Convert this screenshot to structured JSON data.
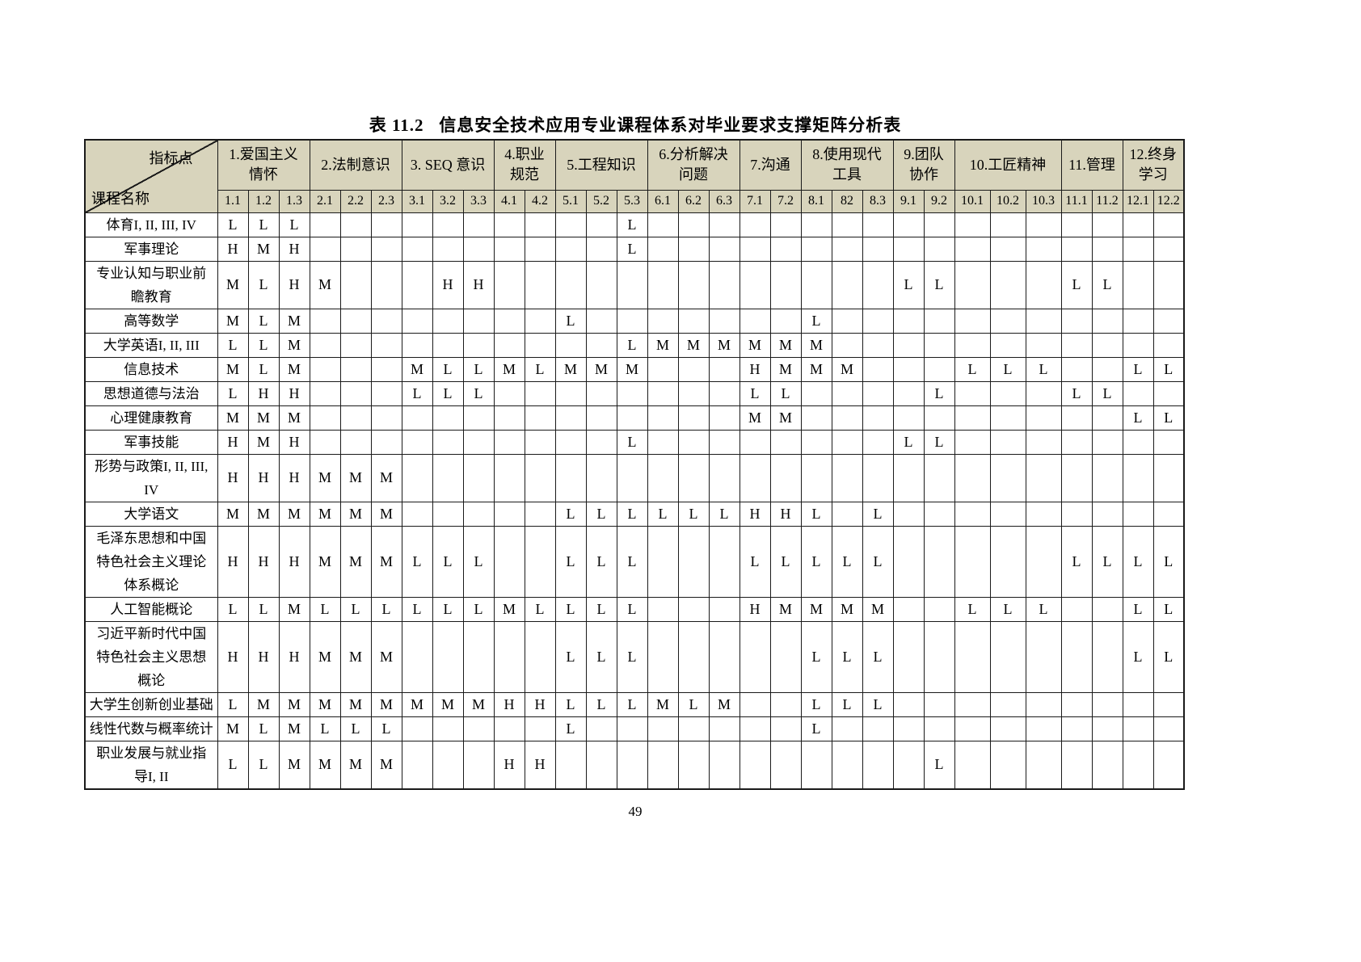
{
  "title": "表 11.2   信息安全技术应用专业课程体系对毕业要求支撑矩阵分析表",
  "page_number": "49",
  "colors": {
    "header_bg": "#d8d4bc",
    "grid_line": "#1a1a1a",
    "page_bg": "#ffffff"
  },
  "table": {
    "corner": {
      "top_label": "指标点",
      "bottom_label": "课程名称"
    },
    "groups": [
      {
        "lines": [
          "1.爱国主义",
          "情怀"
        ],
        "span": 3
      },
      {
        "lines": [
          "2.法制意识"
        ],
        "span": 3
      },
      {
        "lines": [
          "3. SEQ 意识"
        ],
        "span": 3
      },
      {
        "lines": [
          "4.职业",
          "规范"
        ],
        "span": 2
      },
      {
        "lines": [
          "5.工程知识"
        ],
        "span": 3
      },
      {
        "lines": [
          "6.分析解决",
          "问题"
        ],
        "span": 3
      },
      {
        "lines": [
          "7.沟通"
        ],
        "span": 2
      },
      {
        "lines": [
          "8.使用现代",
          "工具"
        ],
        "span": 3
      },
      {
        "lines": [
          "9.团队",
          "协作"
        ],
        "span": 2
      },
      {
        "lines": [
          "10.工匠精神"
        ],
        "span": 3
      },
      {
        "lines": [
          "11.管理"
        ],
        "span": 2
      },
      {
        "lines": [
          "12.终身",
          "学习"
        ],
        "span": 2
      }
    ],
    "subcolumns": [
      "1.1",
      "1.2",
      "1.3",
      "2.1",
      "2.2",
      "2.3",
      "3.1",
      "3.2",
      "3.3",
      "4.1",
      "4.2",
      "5.1",
      "5.2",
      "5.3",
      "6.1",
      "6.2",
      "6.3",
      "7.1",
      "7.2",
      "8.1",
      "82",
      "8.3",
      "9.1",
      "9.2",
      "10.1",
      "10.2",
      "10.3",
      "11.1",
      "11.2",
      "12.1",
      "12.2"
    ],
    "rows": [
      {
        "course": "体育I, II, III, IV",
        "values": [
          "L",
          "L",
          "L",
          "",
          "",
          "",
          "",
          "",
          "",
          "",
          "",
          "",
          "",
          "L",
          "",
          "",
          "",
          "",
          "",
          "",
          "",
          "",
          "",
          "",
          "",
          "",
          "",
          "",
          "",
          "",
          ""
        ]
      },
      {
        "course": "军事理论",
        "values": [
          "H",
          "M",
          "H",
          "",
          "",
          "",
          "",
          "",
          "",
          "",
          "",
          "",
          "",
          "L",
          "",
          "",
          "",
          "",
          "",
          "",
          "",
          "",
          "",
          "",
          "",
          "",
          "",
          "",
          "",
          "",
          ""
        ]
      },
      {
        "course": "专业认知与职业前\n瞻教育",
        "values": [
          "M",
          "L",
          "H",
          "M",
          "",
          "",
          "",
          "H",
          "H",
          "",
          "",
          "",
          "",
          "",
          "",
          "",
          "",
          "",
          "",
          "",
          "",
          "",
          "L",
          "L",
          "",
          "",
          "",
          "L",
          "L",
          "",
          ""
        ]
      },
      {
        "course": "高等数学",
        "values": [
          "M",
          "L",
          "M",
          "",
          "",
          "",
          "",
          "",
          "",
          "",
          "",
          "L",
          "",
          "",
          "",
          "",
          "",
          "",
          "",
          "L",
          "",
          "",
          "",
          "",
          "",
          "",
          "",
          "",
          "",
          "",
          ""
        ]
      },
      {
        "course": "大学英语I, II, III",
        "values": [
          "L",
          "L",
          "M",
          "",
          "",
          "",
          "",
          "",
          "",
          "",
          "",
          "",
          "",
          "L",
          "M",
          "M",
          "M",
          "M",
          "M",
          "M",
          "",
          "",
          "",
          "",
          "",
          "",
          "",
          "",
          "",
          "",
          ""
        ]
      },
      {
        "course": "信息技术",
        "values": [
          "M",
          "L",
          "M",
          "",
          "",
          "",
          "M",
          "L",
          "L",
          "M",
          "L",
          "M",
          "M",
          "M",
          "",
          "",
          "",
          "H",
          "M",
          "M",
          "M",
          "",
          "",
          "",
          "L",
          "L",
          "L",
          "",
          "",
          "L",
          "L"
        ]
      },
      {
        "course": "思想道德与法治",
        "values": [
          "L",
          "H",
          "H",
          "",
          "",
          "",
          "L",
          "L",
          "L",
          "",
          "",
          "",
          "",
          "",
          "",
          "",
          "",
          "L",
          "L",
          "",
          "",
          "",
          "",
          "L",
          "",
          "",
          "",
          "L",
          "L",
          "",
          ""
        ]
      },
      {
        "course": "心理健康教育",
        "values": [
          "M",
          "M",
          "M",
          "",
          "",
          "",
          "",
          "",
          "",
          "",
          "",
          "",
          "",
          "",
          "",
          "",
          "",
          "M",
          "M",
          "",
          "",
          "",
          "",
          "",
          "",
          "",
          "",
          "",
          "",
          "L",
          "L"
        ]
      },
      {
        "course": "军事技能",
        "values": [
          "H",
          "M",
          "H",
          "",
          "",
          "",
          "",
          "",
          "",
          "",
          "",
          "",
          "",
          "L",
          "",
          "",
          "",
          "",
          "",
          "",
          "",
          "",
          "L",
          "L",
          "",
          "",
          "",
          "",
          "",
          "",
          ""
        ]
      },
      {
        "course": "形势与政策I, II, III,\nIV",
        "values": [
          "H",
          "H",
          "H",
          "M",
          "M",
          "M",
          "",
          "",
          "",
          "",
          "",
          "",
          "",
          "",
          "",
          "",
          "",
          "",
          "",
          "",
          "",
          "",
          "",
          "",
          "",
          "",
          "",
          "",
          "",
          "",
          ""
        ]
      },
      {
        "course": "大学语文",
        "values": [
          "M",
          "M",
          "M",
          "M",
          "M",
          "M",
          "",
          "",
          "",
          "",
          "",
          "L",
          "L",
          "L",
          "L",
          "L",
          "L",
          "H",
          "H",
          "L",
          "",
          "L",
          "",
          "",
          "",
          "",
          "",
          "",
          "",
          "",
          ""
        ]
      },
      {
        "course": "毛泽东思想和中国\n特色社会主义理论\n体系概论",
        "values": [
          "H",
          "H",
          "H",
          "M",
          "M",
          "M",
          "L",
          "L",
          "L",
          "",
          "",
          "L",
          "L",
          "L",
          "",
          "",
          "",
          "L",
          "L",
          "L",
          "L",
          "L",
          "",
          "",
          "",
          "",
          "",
          "L",
          "L",
          "L",
          "L"
        ]
      },
      {
        "course": "人工智能概论",
        "values": [
          "L",
          "L",
          "M",
          "L",
          "L",
          "L",
          "L",
          "L",
          "L",
          "M",
          "L",
          "L",
          "L",
          "L",
          "",
          "",
          "",
          "H",
          "M",
          "M",
          "M",
          "M",
          "",
          "",
          "L",
          "L",
          "L",
          "",
          "",
          "L",
          "L"
        ]
      },
      {
        "course": "习近平新时代中国\n特色社会主义思想\n概论",
        "values": [
          "H",
          "H",
          "H",
          "M",
          "M",
          "M",
          "",
          "",
          "",
          "",
          "",
          "L",
          "L",
          "L",
          "",
          "",
          "",
          "",
          "",
          "L",
          "L",
          "L",
          "",
          "",
          "",
          "",
          "",
          "",
          "",
          "L",
          "L"
        ]
      },
      {
        "course": "大学生创新创业基础",
        "values": [
          "L",
          "M",
          "M",
          "M",
          "M",
          "M",
          "M",
          "M",
          "M",
          "H",
          "H",
          "L",
          "L",
          "L",
          "M",
          "L",
          "M",
          "",
          "",
          "L",
          "L",
          "L",
          "",
          "",
          "",
          "",
          "",
          "",
          "",
          "",
          ""
        ]
      },
      {
        "course": "线性代数与概率统计",
        "values": [
          "M",
          "L",
          "M",
          "L",
          "L",
          "L",
          "",
          "",
          "",
          "",
          "",
          "L",
          "",
          "",
          "",
          "",
          "",
          "",
          "",
          "L",
          "",
          "",
          "",
          "",
          "",
          "",
          "",
          "",
          "",
          "",
          ""
        ]
      },
      {
        "course": "职业发展与就业指\n导I, II",
        "values": [
          "L",
          "L",
          "M",
          "M",
          "M",
          "M",
          "",
          "",
          "",
          "H",
          "H",
          "",
          "",
          "",
          "",
          "",
          "",
          "",
          "",
          "",
          "",
          "",
          "",
          "L",
          "",
          "",
          "",
          "",
          "",
          "",
          ""
        ]
      }
    ],
    "column_widths": {
      "course": 164,
      "standard": 38,
      "wide": 44
    }
  }
}
